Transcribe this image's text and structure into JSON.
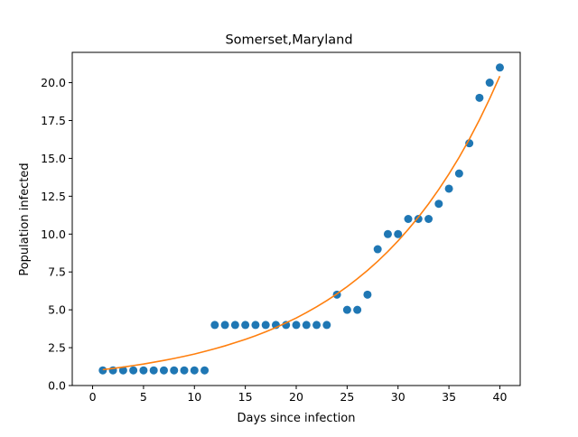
{
  "chart_data": {
    "type": "scatter",
    "title": "Somerset,Maryland",
    "xlabel": "Days since infection",
    "ylabel": "Population infected",
    "xlim": [
      -2,
      42
    ],
    "ylim": [
      0,
      22
    ],
    "x_ticks": [
      0,
      5,
      10,
      15,
      20,
      25,
      30,
      35,
      40
    ],
    "x_tick_labels": [
      "0",
      "5",
      "10",
      "15",
      "20",
      "25",
      "30",
      "35",
      "40"
    ],
    "y_ticks": [
      0,
      2.5,
      5,
      7.5,
      10,
      12.5,
      15,
      17.5,
      20
    ],
    "y_tick_labels": [
      "0.0",
      "2.5",
      "5.0",
      "7.5",
      "10.0",
      "12.5",
      "15.0",
      "17.5",
      "20.0"
    ],
    "grid": false,
    "series": [
      {
        "kind": "scatter",
        "color": "#1f77b4",
        "x": [
          1,
          2,
          3,
          4,
          5,
          6,
          7,
          8,
          9,
          10,
          11,
          12,
          13,
          14,
          15,
          16,
          17,
          18,
          19,
          20,
          21,
          22,
          23,
          24,
          25,
          26,
          27,
          28,
          29,
          30,
          31,
          32,
          33,
          34,
          35,
          36,
          37,
          38,
          39,
          40
        ],
        "y": [
          1,
          1,
          1,
          1,
          1,
          1,
          1,
          1,
          1,
          1,
          1,
          4,
          4,
          4,
          4,
          4,
          4,
          4,
          4,
          4,
          4,
          4,
          4,
          6,
          5,
          5,
          6,
          9,
          10,
          10,
          11,
          11,
          11,
          12,
          13,
          14,
          16,
          19,
          20,
          21
        ]
      },
      {
        "kind": "line",
        "color": "#ff7f0e",
        "x": [
          1,
          2,
          3,
          4,
          5,
          6,
          7,
          8,
          9,
          10,
          11,
          12,
          13,
          14,
          15,
          16,
          17,
          18,
          19,
          20,
          21,
          22,
          23,
          24,
          25,
          26,
          27,
          28,
          29,
          30,
          31,
          32,
          33,
          34,
          35,
          36,
          37,
          38,
          39,
          40
        ],
        "y": [
          1.05,
          1.13,
          1.22,
          1.32,
          1.42,
          1.54,
          1.66,
          1.79,
          1.93,
          2.08,
          2.25,
          2.43,
          2.62,
          2.83,
          3.05,
          3.29,
          3.55,
          3.83,
          4.14,
          4.46,
          4.82,
          5.2,
          5.61,
          6.05,
          6.53,
          7.05,
          7.6,
          8.2,
          8.85,
          9.55,
          10.31,
          11.12,
          12.0,
          12.95,
          13.97,
          15.07,
          16.26,
          17.55,
          18.94,
          20.43
        ]
      }
    ]
  }
}
